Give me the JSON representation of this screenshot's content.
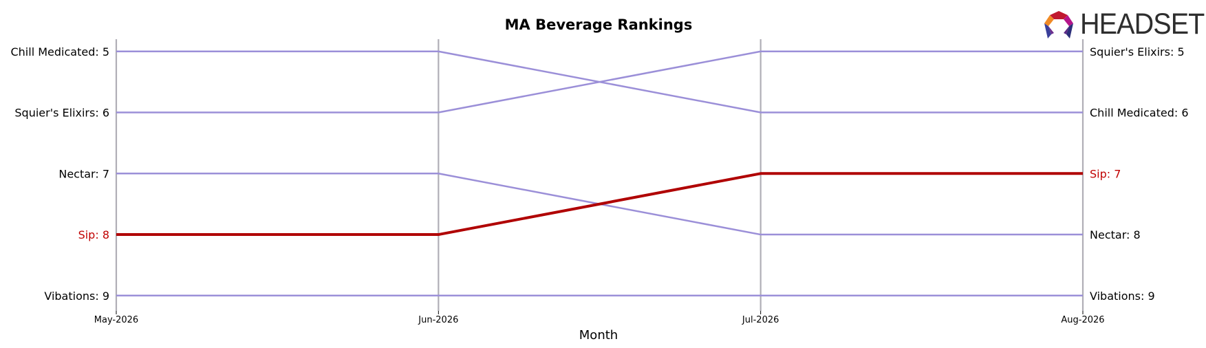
{
  "chart_data": {
    "type": "line",
    "title": "MA Beverage Rankings",
    "xlabel": "Month",
    "ylabel": "",
    "x": [
      "May-2026",
      "Jun-2026",
      "Jul-2026",
      "Aug-2026"
    ],
    "y_reversed": true,
    "ylim": [
      4.8,
      9.25
    ],
    "grid": "vertical lines at each month",
    "series": [
      {
        "name": "Chill Medicated",
        "values": [
          5,
          5,
          6,
          6
        ],
        "color": "#9b8fd8",
        "highlight": false
      },
      {
        "name": "Squier's Elixirs",
        "values": [
          6,
          6,
          5,
          5
        ],
        "color": "#9b8fd8",
        "highlight": false
      },
      {
        "name": "Nectar",
        "values": [
          7,
          7,
          8,
          8
        ],
        "color": "#9b8fd8",
        "highlight": false
      },
      {
        "name": "Sip",
        "values": [
          8,
          8,
          7,
          7
        ],
        "color": "#b00000",
        "highlight": true
      },
      {
        "name": "Vibations",
        "values": [
          9,
          9,
          9,
          9
        ],
        "color": "#9b8fd8",
        "highlight": false
      }
    ]
  },
  "brand": {
    "logo_text": "HEADSET"
  },
  "colors": {
    "highlight_label": "#c00000",
    "normal_label": "#000000",
    "gridline": "#b0aeb6"
  }
}
